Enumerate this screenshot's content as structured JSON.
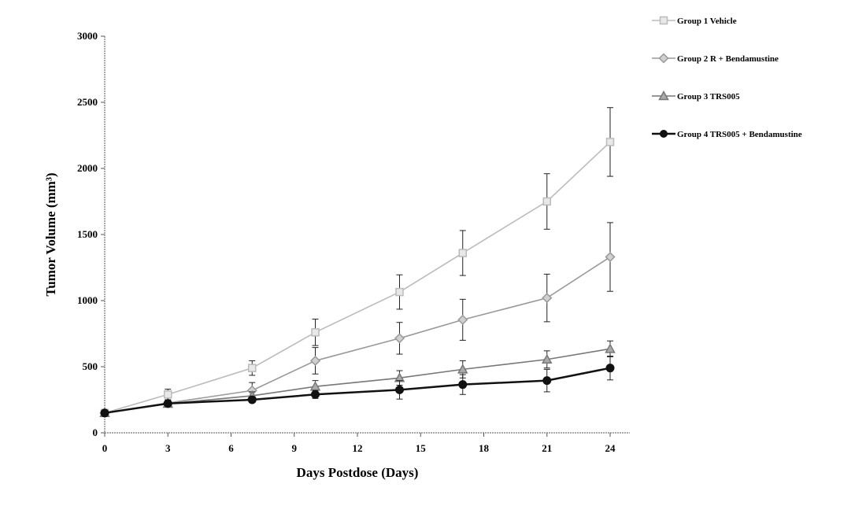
{
  "chart_data": {
    "type": "line",
    "xlabel": "Days Postdose (Days)",
    "ylabel": "Tumor Volume (mm³)",
    "xlim": [
      0,
      24
    ],
    "ylim": [
      0,
      3000
    ],
    "xticks": [
      0,
      3,
      6,
      9,
      12,
      15,
      18,
      21,
      24
    ],
    "yticks": [
      0,
      500,
      1000,
      1500,
      2000,
      2500,
      3000
    ],
    "grid": false,
    "legend_position": "top-right",
    "x": [
      0,
      3,
      7,
      10,
      14,
      17,
      21,
      24
    ],
    "series": [
      {
        "name": "Group 1  Vehicle",
        "marker": "square",
        "color": "#bbbbbb",
        "values": [
          150,
          290,
          490,
          760,
          1065,
          1360,
          1750,
          2200
        ],
        "errors": [
          10,
          40,
          55,
          100,
          130,
          170,
          210,
          260
        ]
      },
      {
        "name": "Group 2  R + Bendamustine",
        "marker": "diamond",
        "color": "#999999",
        "values": [
          150,
          225,
          320,
          545,
          715,
          855,
          1020,
          1330
        ],
        "errors": [
          10,
          25,
          60,
          100,
          120,
          155,
          180,
          260
        ]
      },
      {
        "name": "Group 3  TRS005",
        "marker": "triangle",
        "color": "#777777",
        "values": [
          150,
          220,
          280,
          350,
          415,
          480,
          555,
          635
        ],
        "errors": [
          10,
          20,
          30,
          45,
          55,
          65,
          65,
          60
        ]
      },
      {
        "name": "Group 4  TRS005 + Bendamustine",
        "marker": "circle",
        "color": "#111111",
        "values": [
          150,
          222,
          250,
          290,
          325,
          365,
          395,
          490
        ],
        "errors": [
          10,
          15,
          20,
          30,
          70,
          75,
          85,
          90
        ]
      }
    ]
  }
}
